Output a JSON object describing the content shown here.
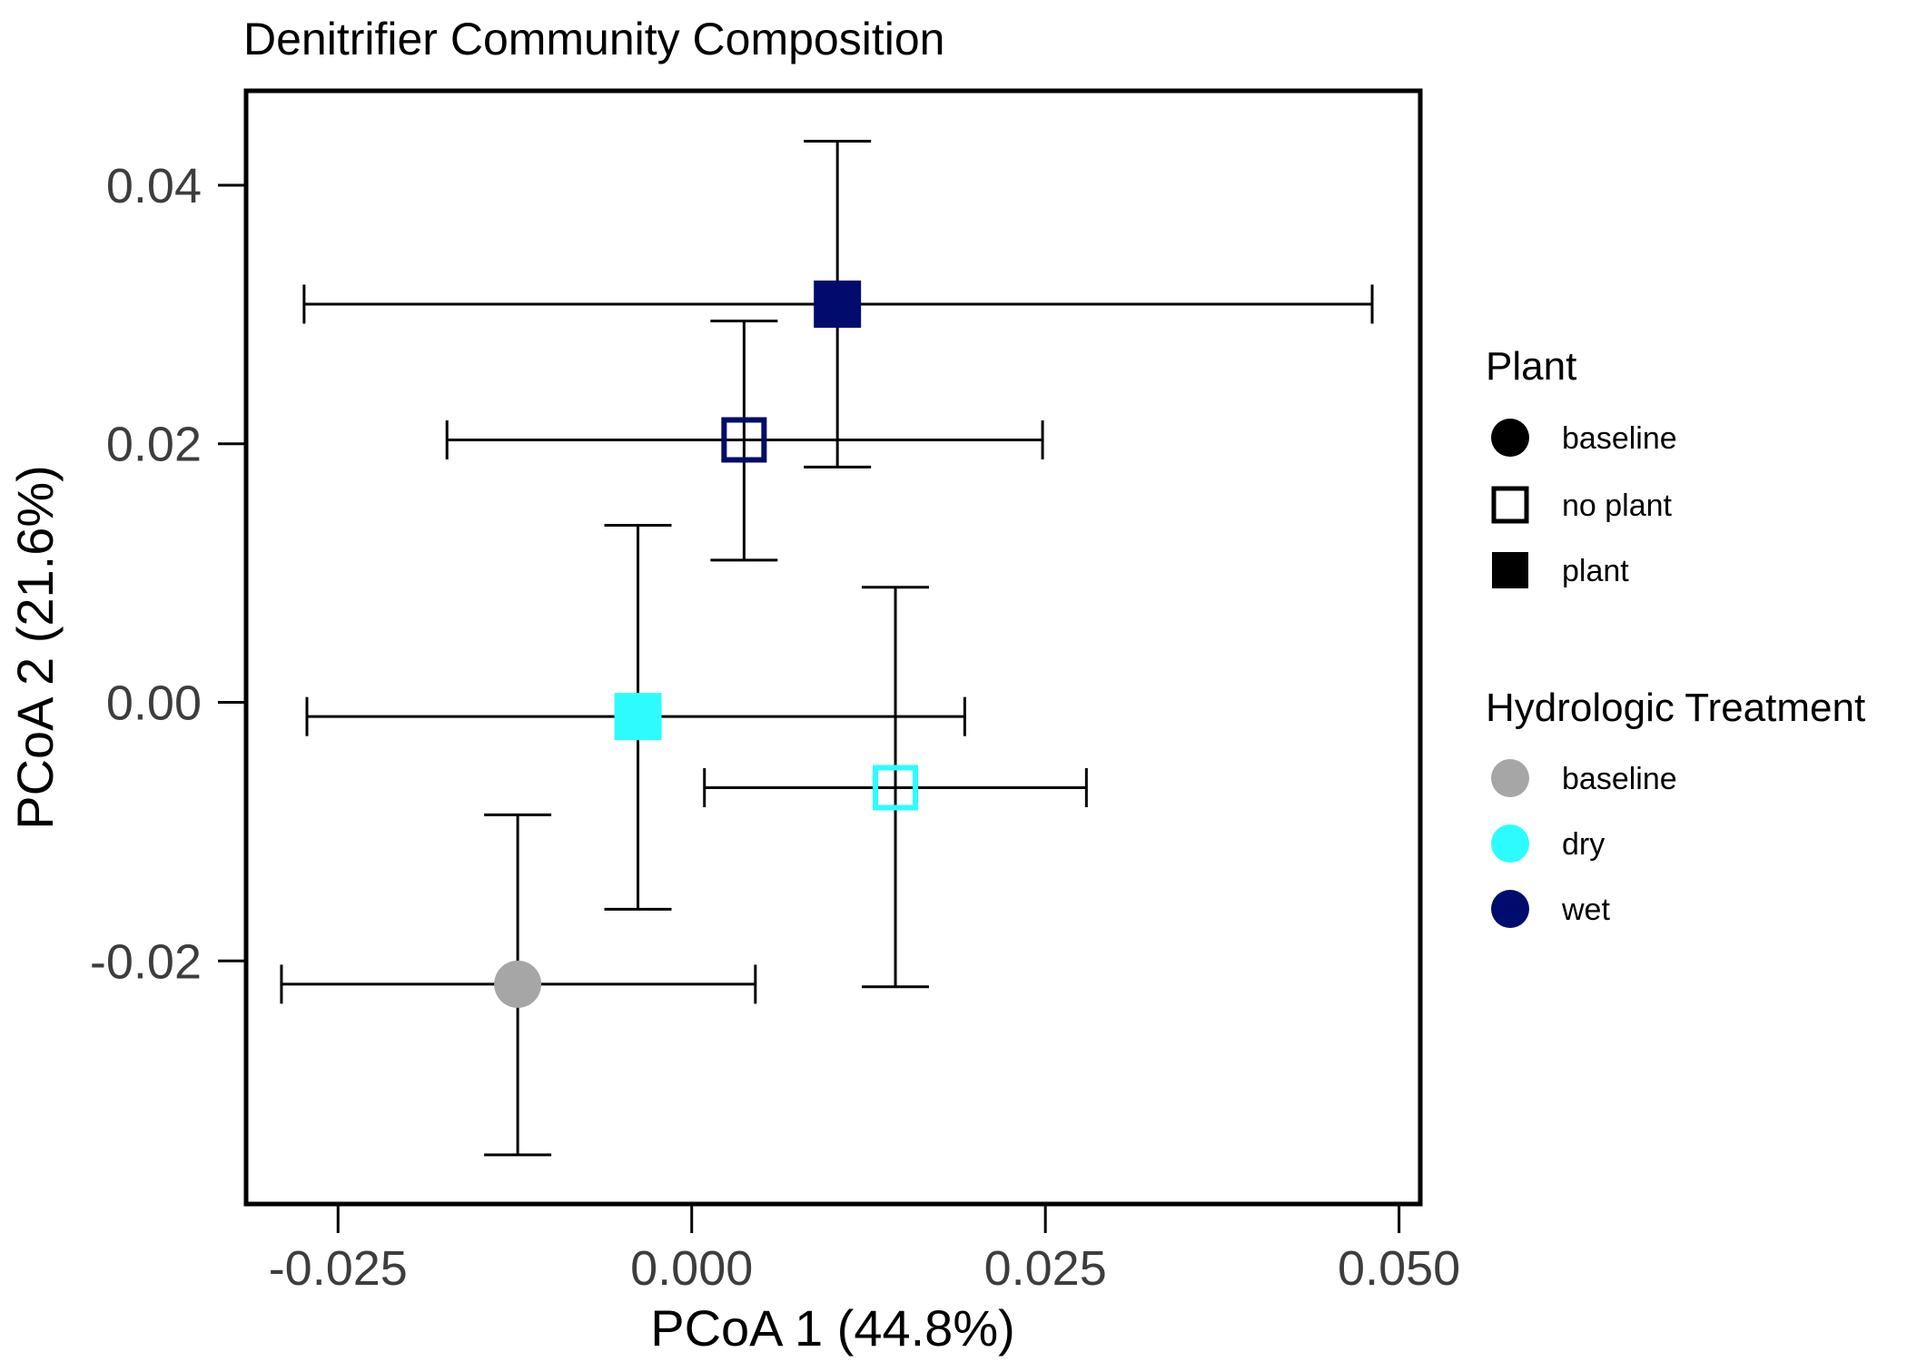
{
  "chart_data": {
    "type": "scatter",
    "title": "Denitrifier Community Composition",
    "xlabel": "PCoA 1 (44.8%)",
    "ylabel": "PCoA 2 (21.6%)",
    "xlim": [
      -0.0315,
      0.0515
    ],
    "ylim": [
      -0.0388,
      0.0473
    ],
    "x_ticks": [
      -0.025,
      0.0,
      0.025,
      0.05
    ],
    "x_tick_labels": [
      "-0.025",
      "0.000",
      "0.025",
      "0.050"
    ],
    "y_ticks": [
      -0.02,
      0.0,
      0.02,
      0.04
    ],
    "y_tick_labels": [
      "-0.02",
      "0.00",
      "0.02",
      "0.04"
    ],
    "grid": false,
    "legend_position": "right",
    "points": [
      {
        "plant": "plant",
        "hydro": "wet",
        "x": 0.0103,
        "y": 0.0308,
        "xmin": -0.0274,
        "xmax": 0.0481,
        "ymin": 0.0182,
        "ymax": 0.0434
      },
      {
        "plant": "no plant",
        "hydro": "wet",
        "x": 0.0037,
        "y": 0.0203,
        "xmin": -0.0173,
        "xmax": 0.0248,
        "ymin": 0.011,
        "ymax": 0.0295
      },
      {
        "plant": "plant",
        "hydro": "dry",
        "x": -0.0038,
        "y": -0.0011,
        "xmin": -0.0272,
        "xmax": 0.0193,
        "ymin": -0.016,
        "ymax": 0.0137
      },
      {
        "plant": "no plant",
        "hydro": "dry",
        "x": 0.0144,
        "y": -0.0066,
        "xmin": 0.0009,
        "xmax": 0.0279,
        "ymin": -0.022,
        "ymax": 0.0089
      },
      {
        "plant": "baseline",
        "hydro": "baseline",
        "x": -0.0123,
        "y": -0.0218,
        "xmin": -0.029,
        "xmax": 0.0045,
        "ymin": -0.035,
        "ymax": -0.0087
      }
    ],
    "legends": [
      {
        "title": "Plant",
        "items": [
          {
            "label": "baseline",
            "shape": "circle"
          },
          {
            "label": "no plant",
            "shape": "open-square"
          },
          {
            "label": "plant",
            "shape": "filled-square"
          }
        ]
      },
      {
        "title": "Hydrologic Treatment",
        "items": [
          {
            "label": "baseline",
            "color": "#a6a6a6"
          },
          {
            "label": "dry",
            "color": "#2dfcff"
          },
          {
            "label": "wet",
            "color": "#000c6d"
          }
        ]
      }
    ],
    "colors": {
      "baseline": "#a6a6a6",
      "dry": "#2dfcff",
      "wet": "#000c6d"
    }
  }
}
